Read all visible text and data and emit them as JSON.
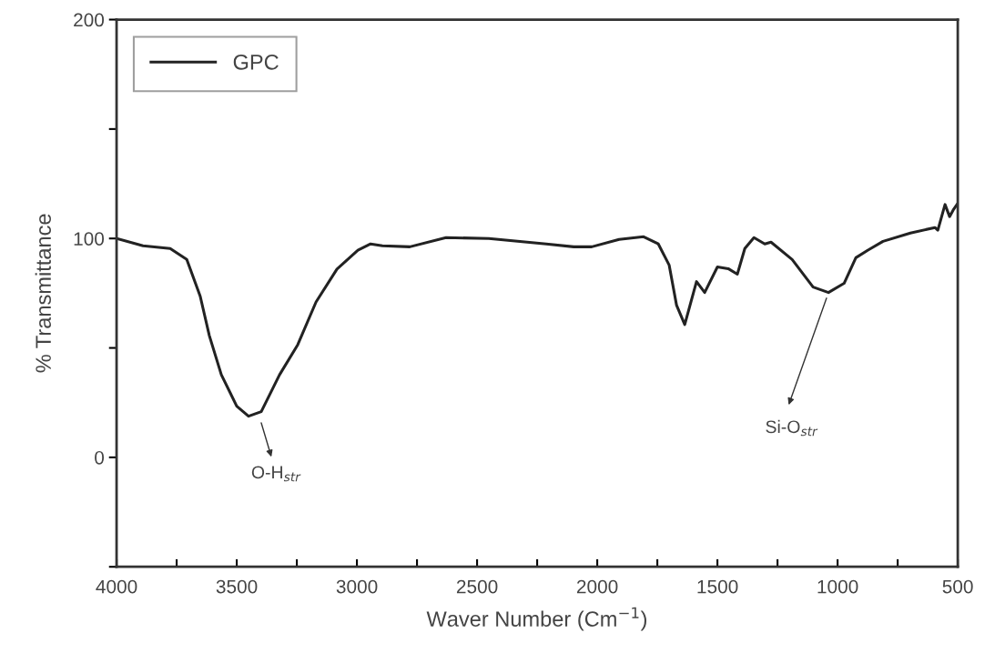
{
  "chart_data": {
    "type": "line",
    "xlabel": "Waver Number (Cm$^{−1}$)",
    "ylabel": "% Transmittance",
    "xlim": [
      4000,
      500
    ],
    "ylim": [
      -50,
      200
    ],
    "xticks": [
      4000,
      {
        "value": 3750,
        "label": null
      },
      3500,
      {
        "value": 3250,
        "label": null
      },
      3000,
      {
        "value": 2750,
        "label": null
      },
      2500,
      {
        "value": 2250,
        "label": null
      },
      2000,
      {
        "value": 1750,
        "label": null
      },
      1500,
      {
        "value": 1250,
        "label": null
      },
      1000,
      {
        "value": 750,
        "label": null
      },
      500
    ],
    "yticks": [
      {
        "value": -50,
        "label": null
      },
      0,
      {
        "value": 50,
        "label": null
      },
      100,
      {
        "value": 150,
        "label": null
      },
      200
    ],
    "grid": false,
    "legend": "top left",
    "marker": "none",
    "line_style": "solid",
    "series": [
      {
        "name": "GPC",
        "color": "#222222",
        "x": [
          4000,
          3890,
          3777,
          3708,
          3652,
          3614,
          3564,
          3500,
          3451,
          3398,
          3322,
          3246,
          3170,
          3083,
          2996,
          2943,
          2894,
          2780,
          2629,
          2451,
          2212,
          2098,
          2023,
          1909,
          1807,
          1746,
          1701,
          1670,
          1636,
          1614,
          1587,
          1553,
          1500,
          1455,
          1417,
          1386,
          1348,
          1303,
          1277,
          1189,
          1102,
          1038,
          973,
          924,
          875,
          811,
          697,
          595,
          583,
          553,
          534,
          519,
          500
        ],
        "values": [
          100,
          96.7,
          95.4,
          90.4,
          73.6,
          55.6,
          37.7,
          23.4,
          18.8,
          20.9,
          37.7,
          51.5,
          71,
          86,
          94.6,
          97.5,
          96.7,
          96.2,
          100.4,
          100,
          97.5,
          96.2,
          96.2,
          99.6,
          100.8,
          97.5,
          87.9,
          69.5,
          60.7,
          69.5,
          80.3,
          75.3,
          87,
          86.2,
          83.7,
          95.4,
          100.4,
          97.5,
          98.3,
          90.4,
          77.8,
          75.3,
          79.5,
          91.2,
          94.6,
          98.7,
          102.5,
          105,
          103.8,
          115.5,
          110,
          113,
          116
        ]
      }
    ],
    "annotations": [
      "O-H$_{str}$",
      "Si-O$_{str}$"
    ]
  }
}
